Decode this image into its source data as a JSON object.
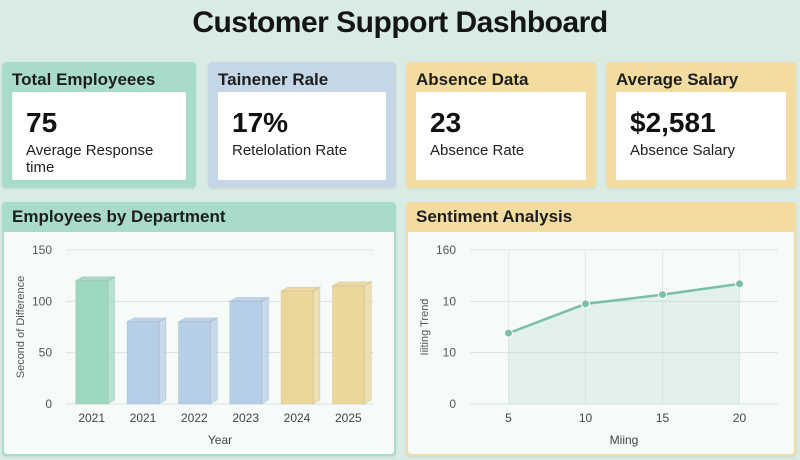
{
  "header": {
    "title": "Customer Support Dashboard"
  },
  "colors": {
    "green_card": "#a8dcc8",
    "blue_card": "#c5d6e6",
    "yellow_card": "#f2dca0",
    "bar_green": "#9fd8c0",
    "bar_blue": "#b6cfe6",
    "bar_yellow": "#ecd79b",
    "line": "#7bbfa8"
  },
  "kpis": [
    {
      "title": "Total Employeees",
      "value": "75",
      "label": "Average Response time"
    },
    {
      "title": "Tainener Rale",
      "value": "17%",
      "label": "Retelolation Rate"
    },
    {
      "title": "Absence Data",
      "value": "23",
      "label": "Absence Rate"
    },
    {
      "title": "Average Salary",
      "value": "$2,581",
      "label": "Absence Salary"
    }
  ],
  "chart_data": [
    {
      "type": "bar",
      "title": "Employees by Department",
      "categories": [
        "2021",
        "2021",
        "2022",
        "2023",
        "2024",
        "2025"
      ],
      "values": [
        120,
        80,
        80,
        100,
        110,
        115
      ],
      "xlabel": "Year",
      "ylabel": "Second of Difference",
      "ylim": [
        0,
        150
      ],
      "yticks": [
        "0",
        "50",
        "100",
        "150"
      ],
      "grid": true
    },
    {
      "type": "line",
      "title": "Sentiment Analysis",
      "x": [
        5,
        10,
        15,
        20
      ],
      "values": [
        0.46,
        0.65,
        0.71,
        0.78
      ],
      "xticks": [
        "5",
        "10",
        "15",
        "20"
      ],
      "yticks": [
        "0",
        "10",
        "10",
        "160"
      ],
      "xlabel": "Miing",
      "ylabel": "Iiiting Trend",
      "ylim": [
        0,
        1
      ],
      "grid": true
    }
  ]
}
